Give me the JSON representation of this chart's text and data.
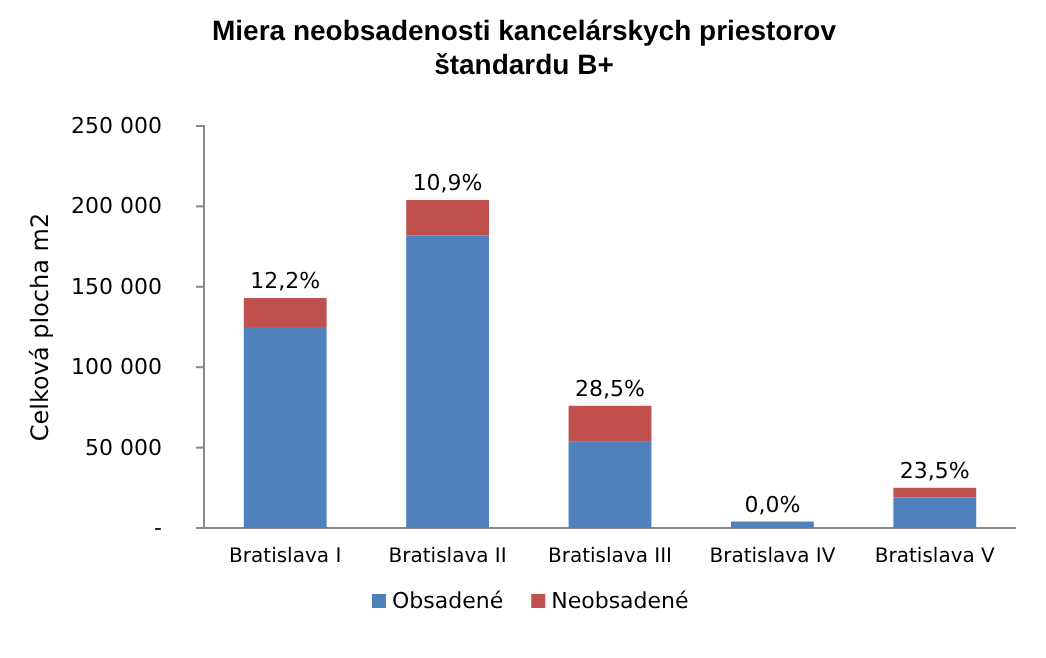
{
  "chart_data": {
    "type": "bar",
    "stacked": true,
    "title": "Miera neobsadenosti kancelárskych priestorov\nštandardu B+",
    "ylabel": "Celková  plocha m2",
    "categories": [
      "Bratislava I",
      "Bratislava II",
      "Bratislava III",
      "Bratislava IV",
      "Bratislava V"
    ],
    "series": [
      {
        "name": "Obsadené",
        "color": "#4f81bd",
        "values": [
          125000,
          182000,
          54000,
          4000,
          19000
        ]
      },
      {
        "name": "Neobsadené",
        "color": "#c0504d",
        "values": [
          18000,
          22000,
          22000,
          0,
          6000
        ]
      }
    ],
    "ylim": [
      0,
      250000
    ],
    "yticks": [
      {
        "value": 0,
        "label": "-"
      },
      {
        "value": 50000,
        "label": "50 000"
      },
      {
        "value": 100000,
        "label": "100 000"
      },
      {
        "value": 150000,
        "label": "150 000"
      },
      {
        "value": 200000,
        "label": "200 000"
      },
      {
        "value": 250000,
        "label": "250 000"
      }
    ],
    "grid": false,
    "legend": "bottom",
    "annotations": [
      {
        "text": "12,2%",
        "x": "Bratislava I",
        "y": 143000
      },
      {
        "text": "10,9%",
        "x": "Bratislava II",
        "y": 204000
      },
      {
        "text": "28,5%",
        "x": "Bratislava III",
        "y": 76000
      },
      {
        "text": "0,0%",
        "x": "Bratislava IV",
        "y": 4000
      },
      {
        "text": "23,5%",
        "x": "Bratislava V",
        "y": 25000
      }
    ]
  }
}
